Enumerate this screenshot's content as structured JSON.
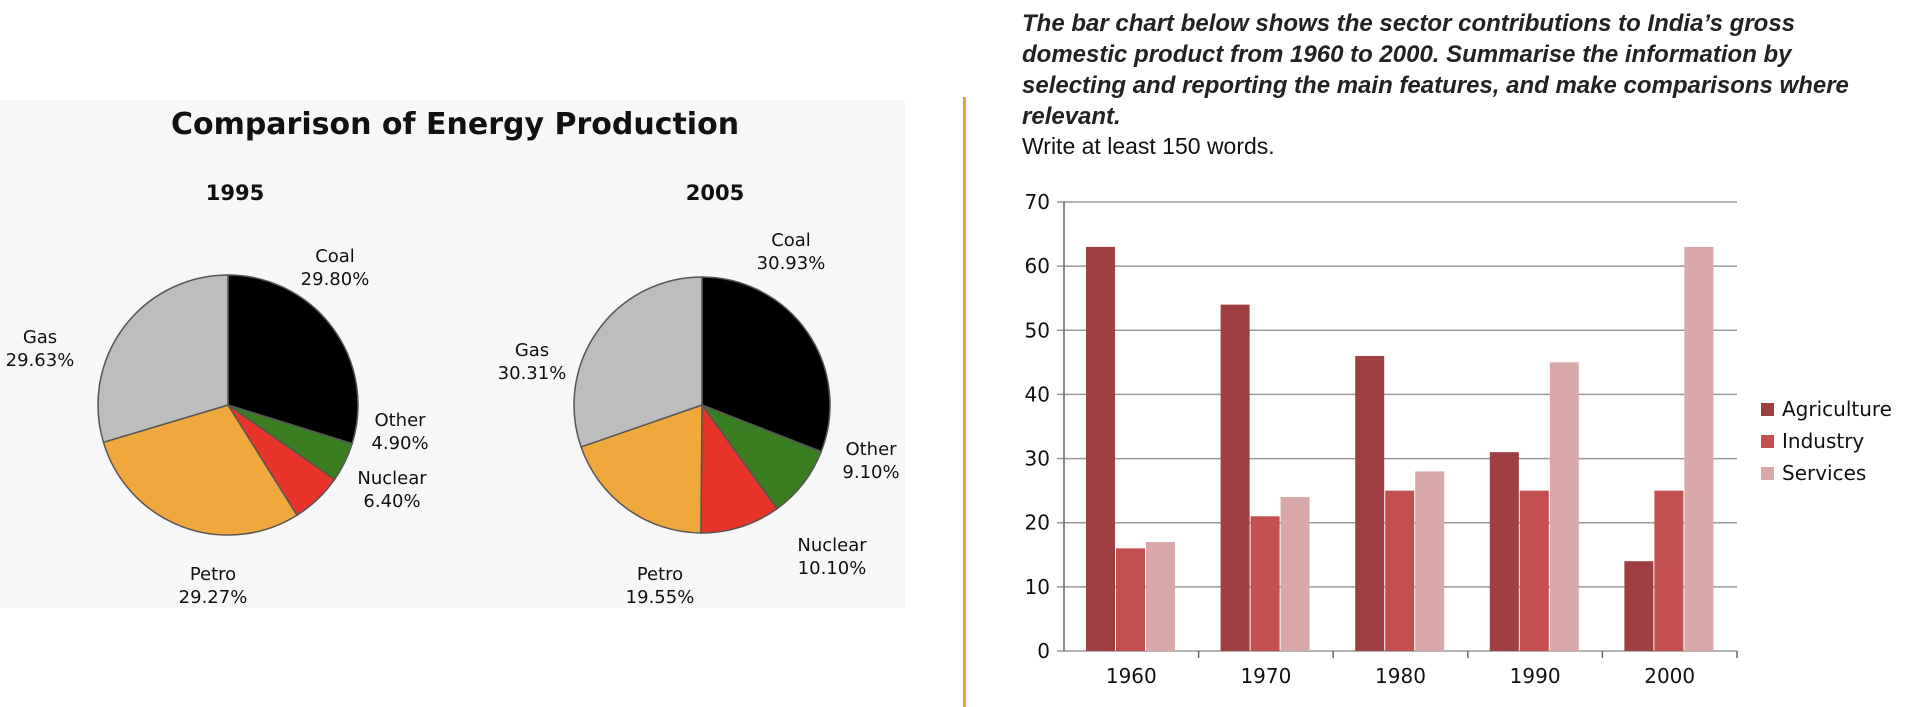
{
  "prompt": {
    "title": "The bar chart below shows the sector contributions to India’s gross domestic product from 1960 to 2000. Summarise the information by selecting and reporting the main features, and make comparisons where relevant.",
    "subtitle": "Write at least 150 words."
  },
  "chart_data": [
    {
      "type": "pie",
      "title": "Comparison of Energy Production",
      "subtitle": "1995",
      "slices": [
        {
          "label": "Coal",
          "value": 29.8,
          "display": "29.80%",
          "color": "#000000"
        },
        {
          "label": "Other",
          "value": 4.9,
          "display": "4.90%",
          "color": "#3a7d22"
        },
        {
          "label": "Nuclear",
          "value": 6.4,
          "display": "6.40%",
          "color": "#e8342a"
        },
        {
          "label": "Petro",
          "value": 29.27,
          "display": "29.27%",
          "color": "#f0a83c"
        },
        {
          "label": "Gas",
          "value": 29.63,
          "display": "29.63%",
          "color": "#bdbdbd"
        }
      ]
    },
    {
      "type": "pie",
      "title": "Comparison of Energy Production",
      "subtitle": "2005",
      "slices": [
        {
          "label": "Coal",
          "value": 30.93,
          "display": "30.93%",
          "color": "#000000"
        },
        {
          "label": "Other",
          "value": 9.1,
          "display": "9.10%",
          "color": "#3a7d22"
        },
        {
          "label": "Nuclear",
          "value": 10.1,
          "display": "10.10%",
          "color": "#e8342a"
        },
        {
          "label": "Petro",
          "value": 19.55,
          "display": "19.55%",
          "color": "#f0a83c"
        },
        {
          "label": "Gas",
          "value": 30.31,
          "display": "30.31%",
          "color": "#bdbdbd"
        }
      ]
    },
    {
      "type": "bar",
      "categories": [
        "1960",
        "1970",
        "1980",
        "1990",
        "2000"
      ],
      "series": [
        {
          "name": "Agriculture",
          "values": [
            63,
            54,
            46,
            31,
            14
          ],
          "color": "#a03f42"
        },
        {
          "name": "Industry",
          "values": [
            16,
            21,
            25,
            25,
            25
          ],
          "color": "#c2504f"
        },
        {
          "name": "Services",
          "values": [
            17,
            24,
            28,
            45,
            63
          ],
          "color": "#d9a9a9"
        }
      ],
      "ylim": [
        0,
        70
      ],
      "yticks": [
        0,
        10,
        20,
        30,
        40,
        50,
        60,
        70
      ],
      "grid": true,
      "legend": "right"
    }
  ]
}
